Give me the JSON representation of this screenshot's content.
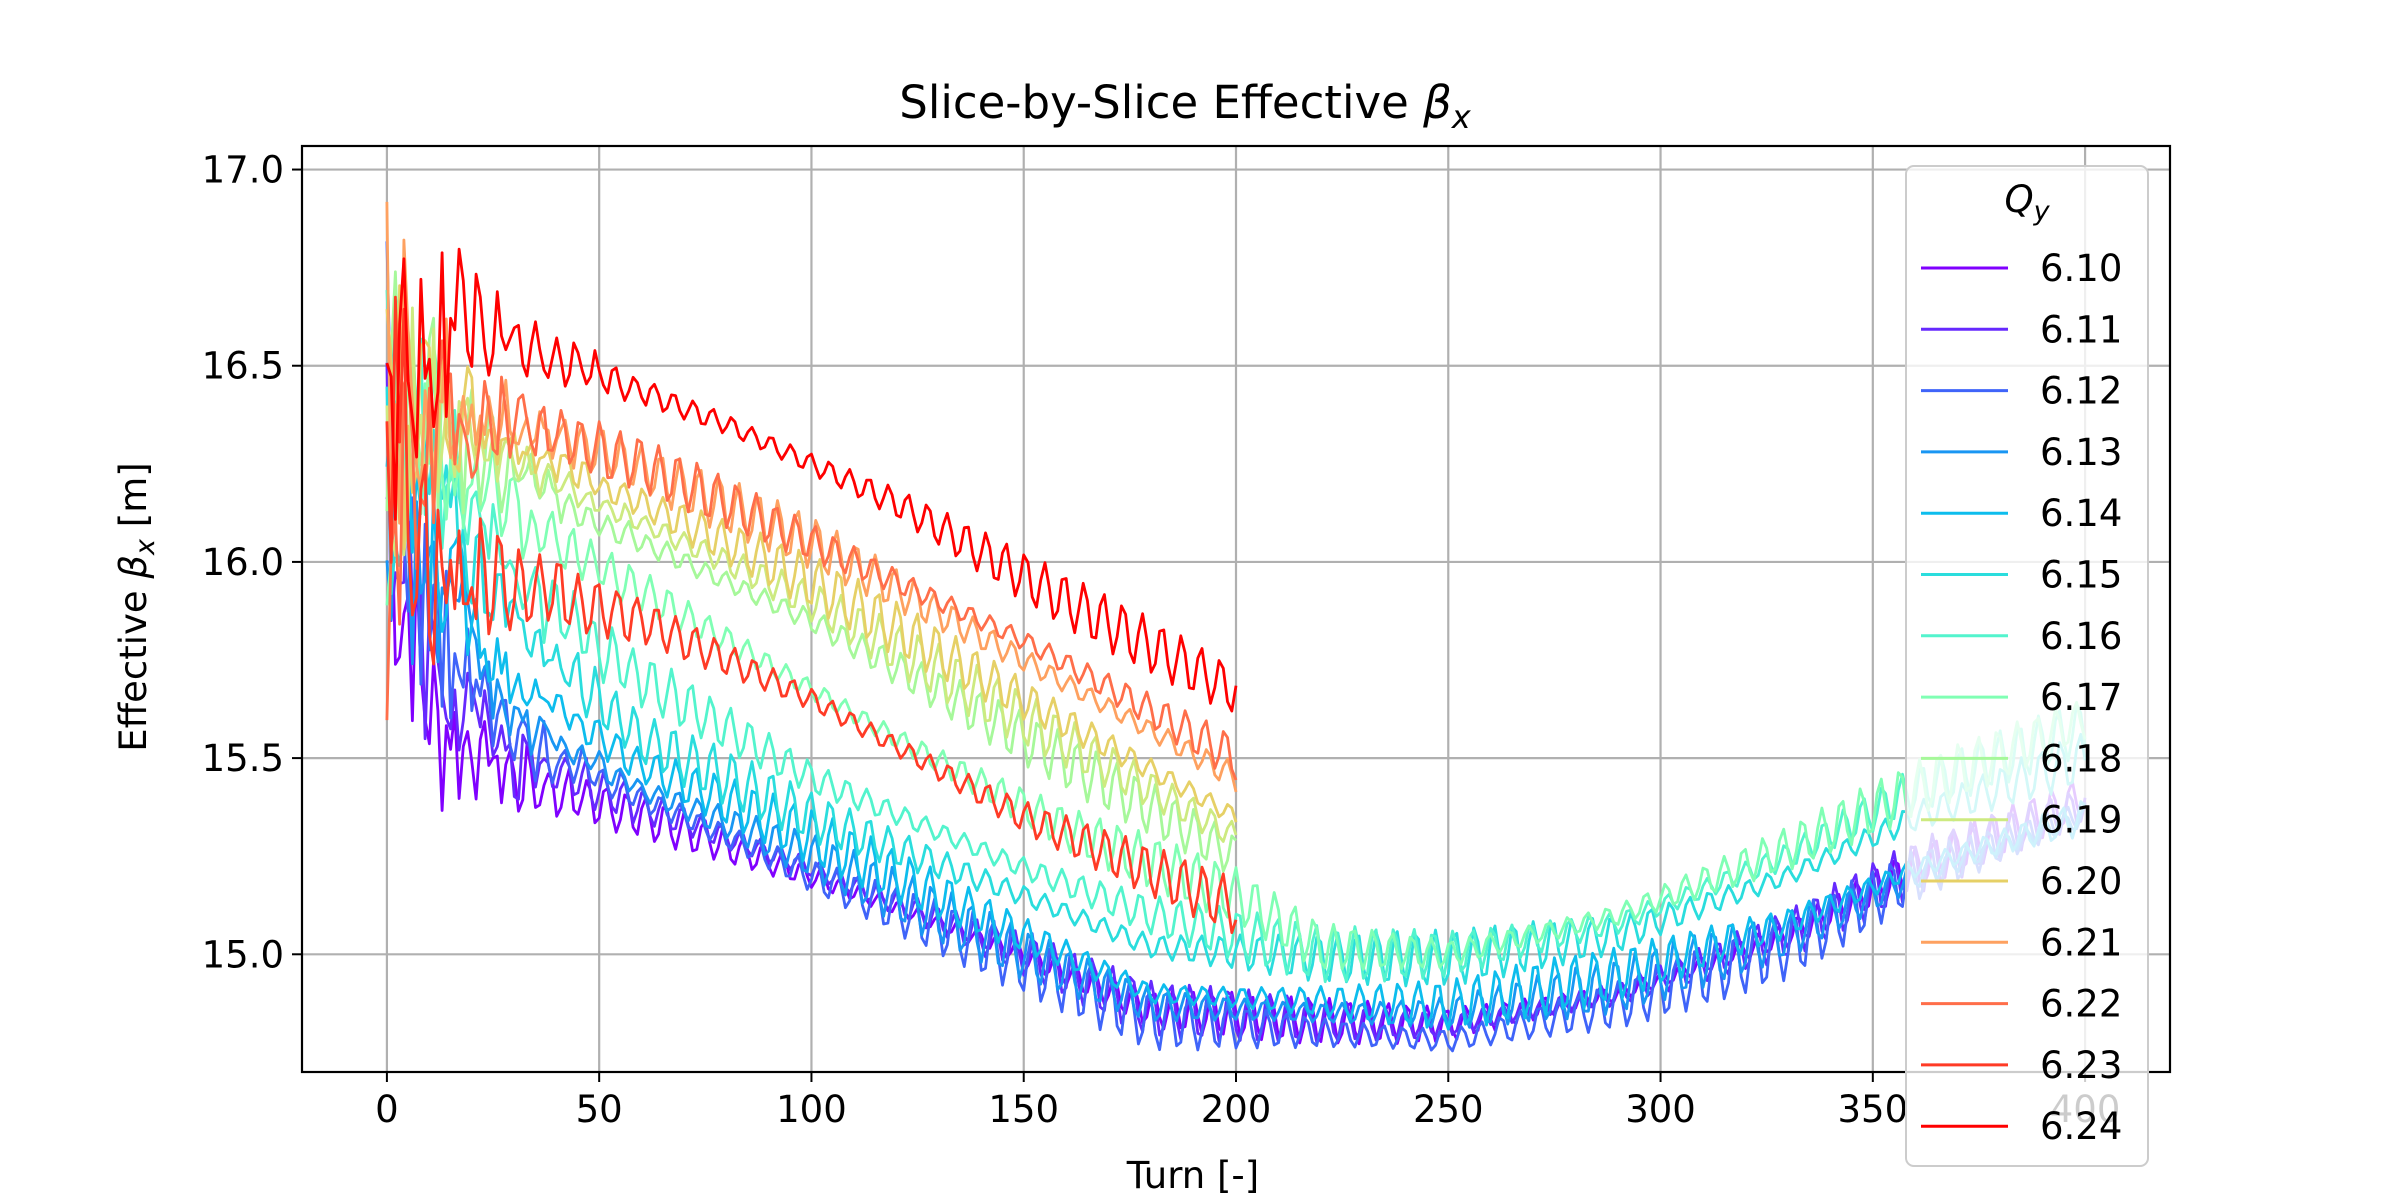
{
  "chart_data": {
    "type": "line",
    "title": "Slice-by-Slice Effective ",
    "title_symbol": "β",
    "title_subscript": "x",
    "xlabel": "Turn [-]",
    "ylabel_prefix": "Effective ",
    "ylabel_symbol": "β",
    "ylabel_subscript": "x",
    "ylabel_suffix": " [m]",
    "xlim": [
      -20,
      420
    ],
    "ylim": [
      14.7,
      17.06
    ],
    "xticks": [
      0,
      50,
      100,
      150,
      200,
      250,
      300,
      350,
      400
    ],
    "xtick_labels": [
      "0",
      "50",
      "100",
      "150",
      "200",
      "250",
      "300",
      "350",
      "400"
    ],
    "yticks": [
      15.0,
      15.5,
      16.0,
      16.5,
      17.0
    ],
    "ytick_labels": [
      "15.0",
      "15.5",
      "16.0",
      "16.5",
      "17.0"
    ],
    "grid": true,
    "legend": {
      "title_symbol": "Q",
      "title_subscript": "y",
      "placement": "upper-right"
    },
    "series": [
      {
        "name": "6.10",
        "color": "#8000ff",
        "start": 16.17,
        "ripple": 0.05,
        "endturn": 400,
        "knots": [
          [
            0,
            16.17
          ],
          [
            10,
            15.6
          ],
          [
            30,
            15.45
          ],
          [
            60,
            15.35
          ],
          [
            100,
            15.2
          ],
          [
            150,
            15.0
          ],
          [
            180,
            14.86
          ],
          [
            220,
            14.83
          ],
          [
            250,
            14.82
          ],
          [
            290,
            14.9
          ],
          [
            330,
            15.05
          ],
          [
            360,
            15.22
          ],
          [
            400,
            15.4
          ]
        ]
      },
      {
        "name": "6.11",
        "color": "#6629fe",
        "start": 16.25,
        "ripple": 0.06,
        "endturn": 400,
        "knots": [
          [
            0,
            16.25
          ],
          [
            10,
            15.7
          ],
          [
            30,
            15.5
          ],
          [
            60,
            15.38
          ],
          [
            100,
            15.22
          ],
          [
            150,
            15.0
          ],
          [
            180,
            14.86
          ],
          [
            220,
            14.83
          ],
          [
            250,
            14.82
          ],
          [
            290,
            14.9
          ],
          [
            330,
            15.05
          ],
          [
            360,
            15.22
          ],
          [
            400,
            15.38
          ]
        ]
      },
      {
        "name": "6.12",
        "color": "#3f64f9",
        "start": 16.3,
        "ripple": 0.07,
        "endturn": 400,
        "knots": [
          [
            0,
            16.3
          ],
          [
            12,
            15.8
          ],
          [
            30,
            15.55
          ],
          [
            60,
            15.4
          ],
          [
            100,
            15.2
          ],
          [
            150,
            14.98
          ],
          [
            180,
            14.83
          ],
          [
            220,
            14.8
          ],
          [
            250,
            14.78
          ],
          [
            290,
            14.87
          ],
          [
            330,
            15.02
          ],
          [
            360,
            15.2
          ],
          [
            400,
            15.36
          ]
        ]
      },
      {
        "name": "6.13",
        "color": "#1996f3",
        "start": 16.3,
        "ripple": 0.06,
        "endturn": 400,
        "knots": [
          [
            0,
            16.3
          ],
          [
            12,
            15.9
          ],
          [
            30,
            15.6
          ],
          [
            60,
            15.42
          ],
          [
            100,
            15.25
          ],
          [
            150,
            15.0
          ],
          [
            180,
            14.87
          ],
          [
            220,
            14.85
          ],
          [
            250,
            14.85
          ],
          [
            290,
            14.92
          ],
          [
            330,
            15.05
          ],
          [
            360,
            15.2
          ],
          [
            400,
            15.35
          ]
        ]
      },
      {
        "name": "6.14",
        "color": "#0dbded",
        "start": 16.35,
        "ripple": 0.06,
        "endturn": 400,
        "knots": [
          [
            0,
            16.35
          ],
          [
            12,
            16.0
          ],
          [
            30,
            15.7
          ],
          [
            60,
            15.48
          ],
          [
            100,
            15.3
          ],
          [
            150,
            15.05
          ],
          [
            180,
            14.9
          ],
          [
            220,
            14.88
          ],
          [
            250,
            14.87
          ],
          [
            290,
            14.95
          ],
          [
            330,
            15.08
          ],
          [
            360,
            15.22
          ],
          [
            400,
            15.35
          ]
        ]
      },
      {
        "name": "6.15",
        "color": "#2adddd",
        "start": 16.35,
        "ripple": 0.06,
        "endturn": 400,
        "knots": [
          [
            0,
            16.35
          ],
          [
            15,
            16.1
          ],
          [
            30,
            15.85
          ],
          [
            60,
            15.55
          ],
          [
            100,
            15.35
          ],
          [
            150,
            15.15
          ],
          [
            180,
            15.02
          ],
          [
            220,
            14.99
          ],
          [
            250,
            14.99
          ],
          [
            290,
            15.05
          ],
          [
            330,
            15.2
          ],
          [
            360,
            15.35
          ],
          [
            400,
            15.5
          ]
        ]
      },
      {
        "name": "6.16",
        "color": "#53f4cd",
        "start": 16.4,
        "ripple": 0.06,
        "endturn": 400,
        "knots": [
          [
            0,
            16.4
          ],
          [
            15,
            16.2
          ],
          [
            30,
            15.95
          ],
          [
            60,
            15.7
          ],
          [
            100,
            15.45
          ],
          [
            150,
            15.22
          ],
          [
            180,
            15.1
          ],
          [
            220,
            15.0
          ],
          [
            250,
            15.0
          ],
          [
            290,
            15.08
          ],
          [
            330,
            15.25
          ],
          [
            360,
            15.42
          ],
          [
            400,
            15.58
          ]
        ]
      },
      {
        "name": "6.17",
        "color": "#80ffb4",
        "start": 16.4,
        "ripple": 0.06,
        "endturn": 400,
        "knots": [
          [
            0,
            16.4
          ],
          [
            15,
            16.25
          ],
          [
            40,
            16.05
          ],
          [
            80,
            15.8
          ],
          [
            120,
            15.55
          ],
          [
            160,
            15.32
          ],
          [
            200,
            15.15
          ],
          [
            220,
            15.02
          ],
          [
            250,
            15.0
          ],
          [
            290,
            15.1
          ],
          [
            330,
            15.27
          ],
          [
            360,
            15.42
          ],
          [
            400,
            15.6
          ]
        ]
      },
      {
        "name": "6.18",
        "color": "#a6f89a",
        "start": 16.4,
        "ripple": 0.06,
        "endturn": 200,
        "knots": [
          [
            0,
            16.4
          ],
          [
            20,
            16.3
          ],
          [
            50,
            16.1
          ],
          [
            100,
            15.85
          ],
          [
            150,
            15.55
          ],
          [
            200,
            15.25
          ]
        ]
      },
      {
        "name": "6.19",
        "color": "#cdea80",
        "start": 16.4,
        "ripple": 0.06,
        "endturn": 200,
        "knots": [
          [
            0,
            16.4
          ],
          [
            20,
            16.3
          ],
          [
            50,
            16.15
          ],
          [
            100,
            15.9
          ],
          [
            150,
            15.6
          ],
          [
            200,
            15.3
          ]
        ]
      },
      {
        "name": "6.20",
        "color": "#e6d066",
        "start": 16.4,
        "ripple": 0.06,
        "endturn": 200,
        "knots": [
          [
            0,
            16.4
          ],
          [
            20,
            16.35
          ],
          [
            50,
            16.2
          ],
          [
            100,
            15.95
          ],
          [
            150,
            15.65
          ],
          [
            200,
            15.35
          ]
        ]
      },
      {
        "name": "6.21",
        "color": "#fea160",
        "start": 16.45,
        "ripple": 0.06,
        "endturn": 200,
        "knots": [
          [
            0,
            16.45
          ],
          [
            20,
            16.4
          ],
          [
            50,
            16.28
          ],
          [
            100,
            16.05
          ],
          [
            150,
            15.75
          ],
          [
            200,
            15.45
          ]
        ]
      },
      {
        "name": "6.22",
        "color": "#ff6e4a",
        "start": 15.9,
        "ripple": 0.06,
        "endturn": 200,
        "knots": [
          [
            0,
            15.9
          ],
          [
            10,
            16.35
          ],
          [
            30,
            16.35
          ],
          [
            60,
            16.25
          ],
          [
            100,
            16.05
          ],
          [
            150,
            15.8
          ],
          [
            200,
            15.5
          ]
        ]
      },
      {
        "name": "6.23",
        "color": "#ff3b26",
        "start": 16.45,
        "ripple": 0.06,
        "endturn": 200,
        "knots": [
          [
            0,
            16.45
          ],
          [
            12,
            15.95
          ],
          [
            30,
            15.95
          ],
          [
            60,
            15.85
          ],
          [
            100,
            15.65
          ],
          [
            150,
            15.35
          ],
          [
            200,
            15.12
          ]
        ]
      },
      {
        "name": "6.24",
        "color": "#ff0000",
        "start": 16.42,
        "ripple": 0.06,
        "endturn": 200,
        "knots": [
          [
            0,
            16.42
          ],
          [
            15,
            16.6
          ],
          [
            40,
            16.52
          ],
          [
            80,
            16.35
          ],
          [
            120,
            16.15
          ],
          [
            160,
            15.9
          ],
          [
            200,
            15.67
          ]
        ]
      }
    ]
  }
}
